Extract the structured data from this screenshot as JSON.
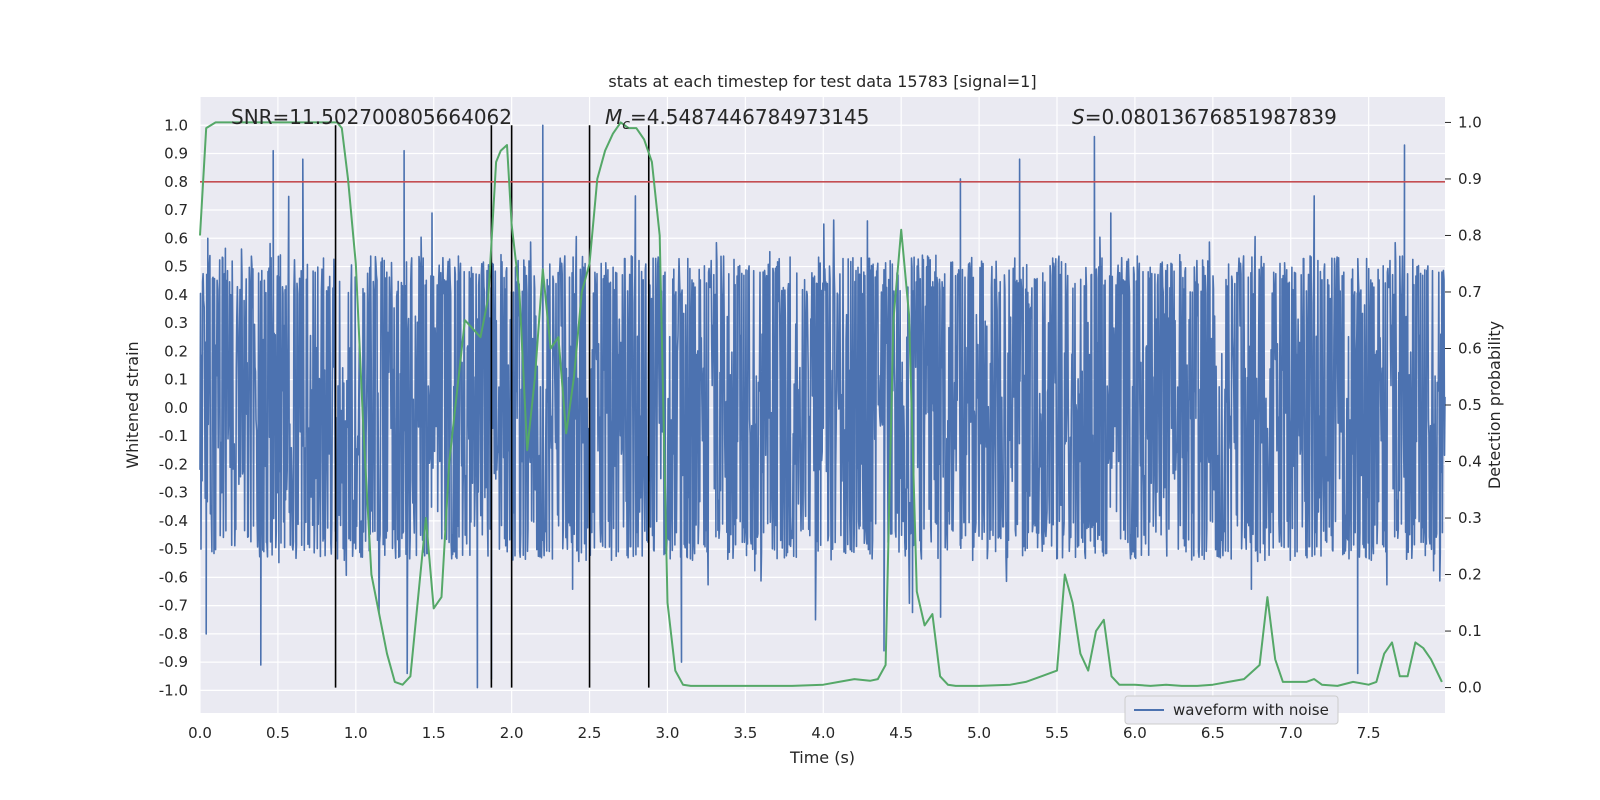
{
  "chart_data": {
    "type": "line",
    "title": "stats at each timestep for test data 15783 [signal=1]",
    "xlabel": "Time (s)",
    "ylabel_left": "Whitened strain",
    "ylabel_right": "Detection probability",
    "xlim": [
      0.0,
      7.99
    ],
    "ylim_left": [
      -1.08,
      1.1
    ],
    "ylim_right": [
      -0.045,
      1.045
    ],
    "x_ticks": [
      "0.0",
      "0.5",
      "1.0",
      "1.5",
      "2.0",
      "2.5",
      "3.0",
      "3.5",
      "4.0",
      "4.5",
      "5.0",
      "5.5",
      "6.0",
      "6.5",
      "7.0",
      "7.5"
    ],
    "y_left_ticks": [
      "-1.0",
      "-0.9",
      "-0.8",
      "-0.7",
      "-0.6",
      "-0.5",
      "-0.4",
      "-0.3",
      "-0.2",
      "-0.1",
      "0.0",
      "0.1",
      "0.2",
      "0.3",
      "0.4",
      "0.5",
      "0.6",
      "0.7",
      "0.8",
      "0.9",
      "1.0"
    ],
    "y_right_ticks": [
      "0.0",
      "0.1",
      "0.2",
      "0.3",
      "0.4",
      "0.5",
      "0.6",
      "0.7",
      "0.8",
      "0.9",
      "1.0"
    ],
    "grid": true,
    "legend": {
      "entries": [
        "waveform with noise"
      ],
      "placement": "lower-right"
    },
    "annotations": {
      "snr": "SNR=11.502700805664062",
      "mc": "=4.5487446784973145",
      "mc_symbol": "M",
      "mc_subscript": "c",
      "s": "=0.08013676851987839",
      "s_symbol": "S"
    },
    "colors": {
      "waveform": "#4c72b0",
      "probability": "#55a868",
      "threshold": "#c44e52",
      "markers": "#000000",
      "background": "#eaeaf2",
      "grid": "#ffffff"
    },
    "series": [
      {
        "name": "waveform with noise",
        "axis": "left",
        "kind": "dense noise",
        "envelope_abs": 0.4,
        "noted_peaks": [
          {
            "x": 0.05,
            "y": 0.6
          },
          {
            "x": 0.47,
            "y": 0.91
          },
          {
            "x": 0.66,
            "y": 0.88
          },
          {
            "x": 1.31,
            "y": 0.91
          },
          {
            "x": 2.2,
            "y": 1.0
          },
          {
            "x": 4.88,
            "y": 0.81
          },
          {
            "x": 5.26,
            "y": 0.88
          },
          {
            "x": 5.74,
            "y": 0.96
          },
          {
            "x": 7.73,
            "y": 0.93
          },
          {
            "x": 0.04,
            "y": -0.8
          },
          {
            "x": 0.39,
            "y": -0.91
          },
          {
            "x": 1.33,
            "y": -0.94
          },
          {
            "x": 1.78,
            "y": -0.99
          },
          {
            "x": 1.87,
            "y": -0.96
          },
          {
            "x": 3.09,
            "y": -0.9
          },
          {
            "x": 4.39,
            "y": -0.86
          },
          {
            "x": 7.43,
            "y": -0.94
          }
        ]
      },
      {
        "name": "detection probability",
        "axis": "right",
        "x": [
          0.0,
          0.04,
          0.1,
          0.5,
          0.88,
          0.91,
          0.95,
          1.0,
          1.05,
          1.1,
          1.2,
          1.25,
          1.3,
          1.35,
          1.45,
          1.5,
          1.55,
          1.6,
          1.7,
          1.8,
          1.85,
          1.9,
          1.93,
          1.97,
          2.0,
          2.05,
          2.1,
          2.15,
          2.2,
          2.25,
          2.3,
          2.35,
          2.4,
          2.45,
          2.5,
          2.55,
          2.6,
          2.65,
          2.7,
          2.75,
          2.8,
          2.85,
          2.9,
          2.95,
          3.0,
          3.05,
          3.1,
          3.15,
          3.2,
          3.3,
          3.5,
          3.6,
          3.8,
          4.0,
          4.1,
          4.2,
          4.3,
          4.35,
          4.4,
          4.45,
          4.5,
          4.55,
          4.6,
          4.65,
          4.7,
          4.75,
          4.8,
          4.85,
          5.0,
          5.2,
          5.3,
          5.4,
          5.5,
          5.55,
          5.6,
          5.65,
          5.7,
          5.75,
          5.8,
          5.85,
          5.9,
          6.0,
          6.1,
          6.2,
          6.3,
          6.4,
          6.5,
          6.6,
          6.7,
          6.8,
          6.85,
          6.9,
          6.95,
          7.0,
          7.1,
          7.15,
          7.2,
          7.3,
          7.4,
          7.5,
          7.55,
          7.6,
          7.65,
          7.7,
          7.75,
          7.8,
          7.85,
          7.9,
          7.97
        ],
        "y": [
          0.8,
          0.99,
          1.0,
          1.0,
          1.0,
          0.99,
          0.9,
          0.75,
          0.45,
          0.2,
          0.06,
          0.01,
          0.005,
          0.02,
          0.3,
          0.14,
          0.16,
          0.4,
          0.65,
          0.62,
          0.69,
          0.93,
          0.95,
          0.96,
          0.82,
          0.7,
          0.42,
          0.55,
          0.74,
          0.6,
          0.62,
          0.45,
          0.55,
          0.7,
          0.75,
          0.9,
          0.95,
          0.98,
          1.0,
          0.99,
          0.99,
          0.97,
          0.93,
          0.8,
          0.15,
          0.03,
          0.005,
          0.003,
          0.003,
          0.003,
          0.003,
          0.003,
          0.003,
          0.005,
          0.01,
          0.015,
          0.012,
          0.015,
          0.04,
          0.65,
          0.81,
          0.66,
          0.17,
          0.11,
          0.13,
          0.02,
          0.005,
          0.003,
          0.003,
          0.005,
          0.01,
          0.02,
          0.03,
          0.2,
          0.15,
          0.06,
          0.03,
          0.1,
          0.12,
          0.02,
          0.005,
          0.005,
          0.003,
          0.005,
          0.003,
          0.003,
          0.005,
          0.01,
          0.015,
          0.04,
          0.16,
          0.05,
          0.01,
          0.01,
          0.01,
          0.015,
          0.005,
          0.003,
          0.01,
          0.005,
          0.01,
          0.06,
          0.08,
          0.02,
          0.02,
          0.08,
          0.07,
          0.05,
          0.01
        ]
      },
      {
        "name": "threshold",
        "axis": "left",
        "kind": "horizontal",
        "y": 0.8
      }
    ],
    "markers_x": [
      0.87,
      1.87,
      2.0,
      2.5,
      2.88
    ]
  }
}
